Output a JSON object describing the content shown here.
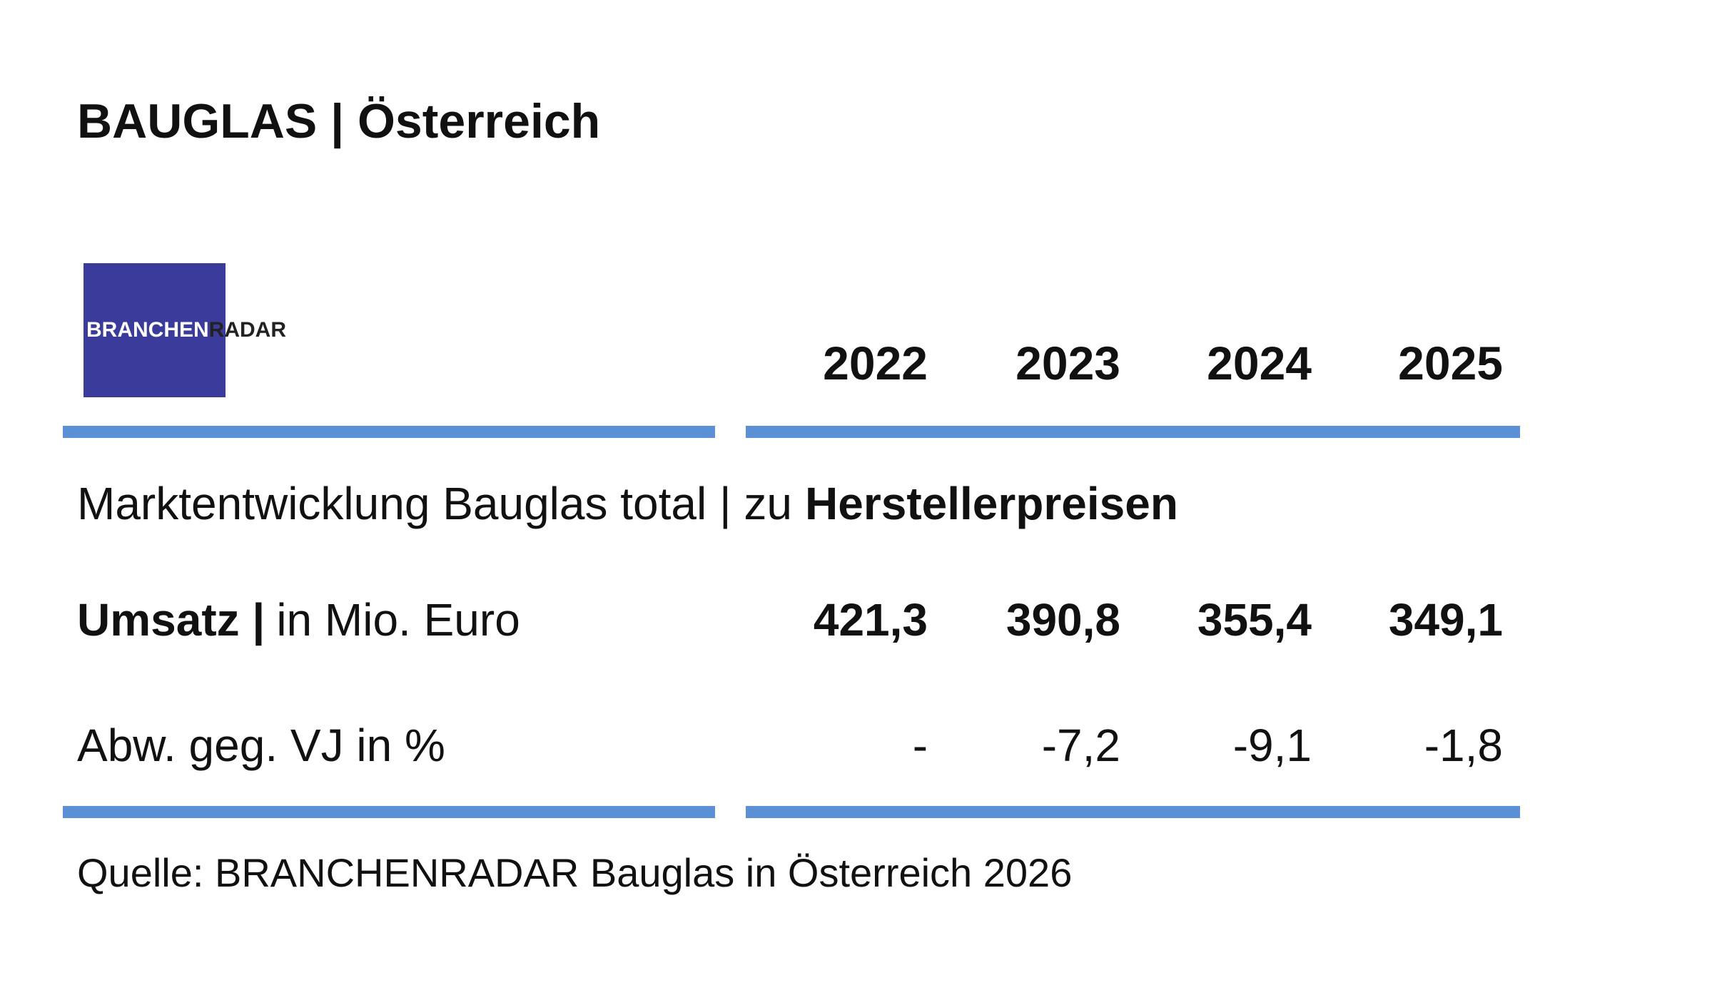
{
  "header": {
    "title": "BAUGLAS | Österreich"
  },
  "logo": {
    "left": "BRANCHEN",
    "right": "RADAR"
  },
  "table": {
    "columns": [
      "2022",
      "2023",
      "2024",
      "2025"
    ],
    "subtitle": {
      "text": "Marktentwicklung Bauglas total | zu",
      "bold": "Herstellerpreisen"
    },
    "rows": [
      {
        "label_bold": "Umsatz |",
        "label": "in Mio. Euro",
        "values": [
          "421,3",
          "390,8",
          "355,4",
          "349,1"
        ]
      },
      {
        "label": "Abw. geg. VJ in %",
        "values": [
          "-",
          "-7,2",
          "-9,1",
          "-1,8"
        ]
      }
    ]
  },
  "source": "Quelle: BRANCHENRADAR Bauglas in Österreich 2026"
}
